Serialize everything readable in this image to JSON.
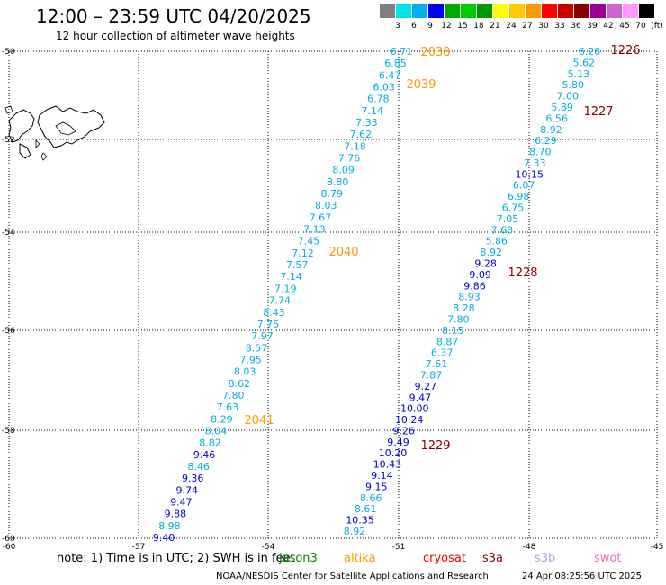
{
  "header": {
    "title": "12:00 – 23:59 UTC 04/20/2025",
    "subtitle": "12 hour collection of altimeter wave heights"
  },
  "colorbar": {
    "colors": [
      "#808080",
      "#00e6e6",
      "#00b0f0",
      "#0000ee",
      "#00aa00",
      "#00cc00",
      "#009900",
      "#ffff00",
      "#ffcc00",
      "#ff9900",
      "#ff0000",
      "#cc0000",
      "#880000",
      "#990099",
      "#cc66cc",
      "#ff99ff",
      "#000000"
    ],
    "labels": [
      "3",
      "6",
      "9",
      "12",
      "15",
      "18",
      "21",
      "24",
      "27",
      "30",
      "33",
      "36",
      "39",
      "42",
      "45",
      "70",
      "(ft)"
    ]
  },
  "map": {
    "lat_labels": [
      "-50",
      "-52",
      "-54",
      "-56",
      "-58",
      "-60"
    ],
    "lon_labels": [
      "-60",
      "-57",
      "-54",
      "-51",
      "-48",
      "-45"
    ],
    "colors": {
      "cyan": "#00b0e0",
      "blue": "#0000cc",
      "orange": "#ff9900",
      "darkred": "#880000"
    },
    "passes": [
      {
        "label": "2038",
        "color": "orange",
        "lon": -59.4,
        "lat": -50.0
      },
      {
        "label": "2039",
        "color": "orange",
        "lon": -59.6,
        "lat": -50.75
      },
      {
        "label": "2040",
        "color": "orange",
        "lon": -53.8,
        "lat": -54.4
      },
      {
        "label": "2041",
        "color": "orange",
        "lon": -54.5,
        "lat": -58.0
      },
      {
        "label": "1226",
        "color": "darkred",
        "lon": -59.7,
        "lat": -50.0
      },
      {
        "label": "1227",
        "color": "darkred",
        "lon": -57.3,
        "lat": -51.3
      },
      {
        "label": "1228",
        "color": "darkred",
        "lon": -57.6,
        "lat": -54.85
      },
      {
        "label": "1229",
        "color": "darkred",
        "lon": -59.3,
        "lat": -58.3
      }
    ],
    "track1": [
      {
        "v": "6.71",
        "c": "cyan"
      },
      {
        "v": "6.85",
        "c": "cyan"
      },
      {
        "v": "6.47",
        "c": "cyan"
      },
      {
        "v": "6.03",
        "c": "cyan"
      },
      {
        "v": "6.78",
        "c": "cyan"
      },
      {
        "v": "7.14",
        "c": "cyan"
      },
      {
        "v": "7.33",
        "c": "cyan"
      },
      {
        "v": "7.62",
        "c": "cyan"
      },
      {
        "v": "7.18",
        "c": "cyan"
      },
      {
        "v": "7.76",
        "c": "cyan"
      },
      {
        "v": "8.09",
        "c": "cyan"
      },
      {
        "v": "8.80",
        "c": "cyan"
      },
      {
        "v": "8.79",
        "c": "cyan"
      },
      {
        "v": "8.03",
        "c": "cyan"
      },
      {
        "v": "7.67",
        "c": "cyan"
      },
      {
        "v": "7.13",
        "c": "cyan"
      },
      {
        "v": "7.45",
        "c": "cyan"
      },
      {
        "v": "7.12",
        "c": "cyan"
      },
      {
        "v": "7.57",
        "c": "cyan"
      },
      {
        "v": "7.14",
        "c": "cyan"
      },
      {
        "v": "7.19",
        "c": "cyan"
      },
      {
        "v": "7.74",
        "c": "cyan"
      },
      {
        "v": "8.43",
        "c": "cyan"
      },
      {
        "v": "7.75",
        "c": "cyan"
      },
      {
        "v": "7.97",
        "c": "cyan"
      },
      {
        "v": "8.57",
        "c": "cyan"
      },
      {
        "v": "7.95",
        "c": "cyan"
      },
      {
        "v": "8.03",
        "c": "cyan"
      },
      {
        "v": "8.62",
        "c": "cyan"
      },
      {
        "v": "7.80",
        "c": "cyan"
      },
      {
        "v": "7.63",
        "c": "cyan"
      },
      {
        "v": "8.29",
        "c": "cyan"
      },
      {
        "v": "8.04",
        "c": "cyan"
      },
      {
        "v": "8.82",
        "c": "cyan"
      },
      {
        "v": "9.46",
        "c": "blue"
      },
      {
        "v": "8.46",
        "c": "cyan"
      },
      {
        "v": "9.36",
        "c": "blue"
      },
      {
        "v": "9.74",
        "c": "blue"
      },
      {
        "v": "9.47",
        "c": "blue"
      },
      {
        "v": "9.88",
        "c": "blue"
      },
      {
        "v": "8.98",
        "c": "cyan"
      },
      {
        "v": "9.40",
        "c": "blue"
      }
    ],
    "track2": [
      {
        "v": "6.28",
        "c": "cyan"
      },
      {
        "v": "5.62",
        "c": "cyan"
      },
      {
        "v": "5.13",
        "c": "cyan"
      },
      {
        "v": "5.80",
        "c": "cyan"
      },
      {
        "v": "7.00",
        "c": "cyan"
      },
      {
        "v": "5.89",
        "c": "cyan"
      },
      {
        "v": "6.56",
        "c": "cyan"
      },
      {
        "v": "8.92",
        "c": "cyan"
      },
      {
        "v": "6.29",
        "c": "cyan"
      },
      {
        "v": "8.70",
        "c": "cyan"
      },
      {
        "v": "7.33",
        "c": "cyan"
      },
      {
        "v": "10.15",
        "c": "blue"
      },
      {
        "v": "6.07",
        "c": "cyan"
      },
      {
        "v": "6.98",
        "c": "cyan"
      },
      {
        "v": "6.75",
        "c": "cyan"
      },
      {
        "v": "7.05",
        "c": "cyan"
      },
      {
        "v": "7.68",
        "c": "cyan"
      },
      {
        "v": "5.86",
        "c": "cyan"
      },
      {
        "v": "8.92",
        "c": "cyan"
      },
      {
        "v": "9.28",
        "c": "blue"
      },
      {
        "v": "9.09",
        "c": "blue"
      },
      {
        "v": "9.86",
        "c": "blue"
      },
      {
        "v": "8.93",
        "c": "cyan"
      },
      {
        "v": "8.28",
        "c": "cyan"
      },
      {
        "v": "7.80",
        "c": "cyan"
      },
      {
        "v": "8.15",
        "c": "cyan"
      },
      {
        "v": "8.87",
        "c": "cyan"
      },
      {
        "v": "6.37",
        "c": "cyan"
      },
      {
        "v": "7.61",
        "c": "cyan"
      },
      {
        "v": "7.87",
        "c": "cyan"
      },
      {
        "v": "9.27",
        "c": "blue"
      },
      {
        "v": "9.47",
        "c": "blue"
      },
      {
        "v": "10.00",
        "c": "blue"
      },
      {
        "v": "10.24",
        "c": "blue"
      },
      {
        "v": "9.26",
        "c": "blue"
      },
      {
        "v": "9.49",
        "c": "blue"
      },
      {
        "v": "10.20",
        "c": "blue"
      },
      {
        "v": "10.43",
        "c": "blue"
      },
      {
        "v": "9.14",
        "c": "blue"
      },
      {
        "v": "9.15",
        "c": "blue"
      },
      {
        "v": "8.66",
        "c": "cyan"
      },
      {
        "v": "8.61",
        "c": "cyan"
      },
      {
        "v": "10.35",
        "c": "blue"
      },
      {
        "v": "8.92",
        "c": "cyan"
      }
    ]
  },
  "footer": {
    "note": "note:  1) Time is in UTC;  2) SWH is in feet",
    "satellites": [
      {
        "name": "jason3",
        "color": "#008800"
      },
      {
        "name": "altika",
        "color": "#ff9900"
      },
      {
        "name": "cryosat",
        "color": "#ff0000"
      },
      {
        "name": "s3a",
        "color": "#880000"
      },
      {
        "name": "s3b",
        "color": "#b9a0e8"
      },
      {
        "name": "swot",
        "color": "#ff66cc"
      }
    ],
    "credit": "NOAA/NESDIS Center for Satellite Applications and Research",
    "timestamp": "24 Apr 08:25:56 UTC 2025"
  }
}
